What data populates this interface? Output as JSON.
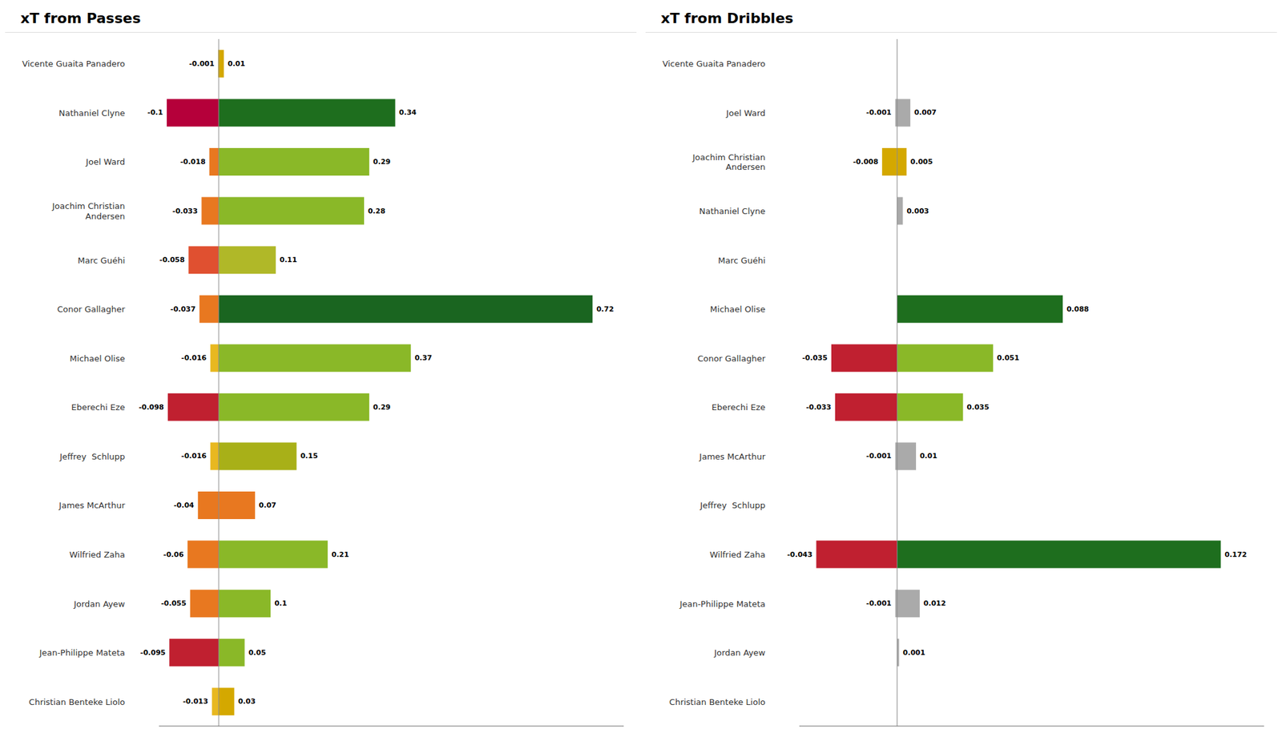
{
  "chart_data": [
    {
      "type": "bar",
      "title": "xT from Passes",
      "orientation": "horizontal",
      "stacked": true,
      "data_labels": true,
      "grid": false,
      "tick_labels": "y",
      "categories": [
        "Vicente Guaita Panadero",
        "Nathaniel Clyne",
        "Joel Ward",
        "Joachim Christian\nAndersen",
        "Marc Guéhi",
        "Conor Gallagher",
        "Michael Olise",
        "Eberechi Eze",
        "Jeffrey  Schlupp",
        "James McArthur",
        "Wilfried Zaha",
        "Jordan Ayew",
        "Jean-Philippe Mateta",
        "Christian Benteke Liolo"
      ],
      "xlim": [
        -0.115,
        0.78
      ],
      "series": [
        {
          "values": [
            -0.001,
            -0.1,
            -0.018,
            -0.033,
            -0.058,
            -0.037,
            -0.016,
            -0.098,
            -0.016,
            -0.04,
            -0.06,
            -0.055,
            -0.095,
            -0.013
          ],
          "colors": [
            "#d4a800",
            "#b5003a",
            "#e87820",
            "#e87820",
            "#e05030",
            "#e87820",
            "#e8b820",
            "#c02030",
            "#e8b820",
            "#e87820",
            "#e87820",
            "#e87820",
            "#c02030",
            "#e8b820"
          ]
        },
        {
          "values": [
            0.01,
            0.34,
            0.29,
            0.28,
            0.11,
            0.72,
            0.37,
            0.29,
            0.15,
            0.07,
            0.21,
            0.1,
            0.05,
            0.03
          ],
          "colors": [
            "#d4a800",
            "#1e6e1e",
            "#8ab828",
            "#8ab828",
            "#b0b828",
            "#1a6520",
            "#8ab828",
            "#8ab828",
            "#a8b018",
            "#e87820",
            "#8ab828",
            "#8ab828",
            "#8ab828",
            "#d4a800"
          ]
        }
      ]
    },
    {
      "type": "bar",
      "title": "xT from Dribbles",
      "orientation": "horizontal",
      "stacked": true,
      "data_labels": true,
      "grid": false,
      "tick_labels": "y",
      "categories": [
        "Vicente Guaita Panadero",
        "Joel Ward",
        "Joachim Christian\nAndersen",
        "Nathaniel Clyne",
        "Marc Guéhi",
        "Michael Olise",
        "Conor Gallagher",
        "Eberechi Eze",
        "James McArthur",
        "Jeffrey  Schlupp",
        "Wilfried Zaha",
        "Jean-Philippe Mateta",
        "Jordan Ayew",
        "Christian Benteke Liolo"
      ],
      "xlim": [
        -0.052,
        0.195
      ],
      "series": [
        {
          "values": [
            0,
            -0.001,
            -0.008,
            0,
            0,
            0,
            -0.035,
            -0.033,
            -0.001,
            0,
            -0.043,
            -0.001,
            0,
            0
          ],
          "colors": [
            "#aaaaaa",
            "#aaaaaa",
            "#d4a800",
            "#aaaaaa",
            "#aaaaaa",
            "#aaaaaa",
            "#c02030",
            "#c02030",
            "#aaaaaa",
            "#aaaaaa",
            "#c02030",
            "#aaaaaa",
            "#aaaaaa",
            "#aaaaaa"
          ]
        },
        {
          "values": [
            0,
            0.007,
            0.005,
            0.003,
            0,
            0.088,
            0.051,
            0.035,
            0.01,
            0,
            0.172,
            0.012,
            0.001,
            0
          ],
          "colors": [
            "#aaaaaa",
            "#aaaaaa",
            "#d4a800",
            "#aaaaaa",
            "#aaaaaa",
            "#1e6e1e",
            "#8ab828",
            "#8ab828",
            "#aaaaaa",
            "#aaaaaa",
            "#1e6e1e",
            "#aaaaaa",
            "#aaaaaa",
            "#aaaaaa"
          ]
        }
      ]
    }
  ]
}
